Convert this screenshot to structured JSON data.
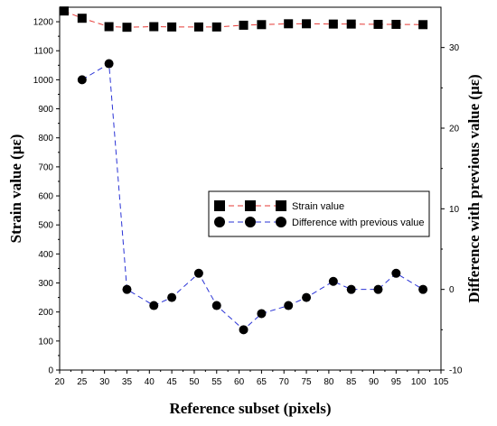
{
  "chart_data": {
    "type": "line",
    "xlabel": "Reference subset (pixels)",
    "ylabel_left": "Strain value (με)",
    "ylabel_right": "Difference with previous value (με)",
    "xlim": [
      20,
      105
    ],
    "ylim_left": [
      0,
      1250
    ],
    "ylim_right": [
      -10,
      35
    ],
    "x_ticks": [
      20,
      25,
      30,
      35,
      40,
      45,
      50,
      55,
      60,
      65,
      70,
      75,
      80,
      85,
      90,
      95,
      100,
      105
    ],
    "y_left_ticks": [
      0,
      100,
      200,
      300,
      400,
      500,
      600,
      700,
      800,
      900,
      1000,
      1100,
      1200
    ],
    "y_right_ticks": [
      -10,
      0,
      10,
      20,
      30
    ],
    "legend_position": "center-right",
    "grid": false,
    "series": [
      {
        "name": "Strain value",
        "axis": "left",
        "marker": "square",
        "line_color": "#e53935",
        "marker_color": "#000000",
        "x": [
          21,
          25,
          31,
          35,
          41,
          45,
          51,
          55,
          61,
          65,
          71,
          75,
          81,
          85,
          91,
          95,
          101
        ],
        "values": [
          1237,
          1212,
          1183,
          1181,
          1183,
          1182,
          1182,
          1182,
          1188,
          1190,
          1193,
          1193,
          1192,
          1192,
          1191,
          1191,
          1190
        ]
      },
      {
        "name": "Difference with previous value",
        "axis": "right",
        "marker": "circle",
        "line_color": "#2a33d6",
        "marker_color": "#000000",
        "x": [
          25,
          31,
          35,
          41,
          45,
          51,
          55,
          61,
          65,
          71,
          75,
          81,
          85,
          91,
          95,
          101
        ],
        "values": [
          26,
          28,
          0,
          -2,
          -1,
          2,
          -2,
          -5,
          -3,
          -2,
          -1,
          1,
          0,
          0,
          2,
          0
        ]
      }
    ]
  }
}
